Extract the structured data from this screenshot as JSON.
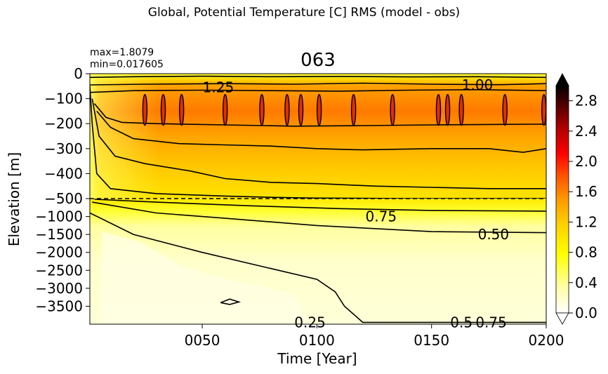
{
  "suptitle": "Global, Potential Temperature [C] RMS (model - obs)",
  "stats": {
    "max": "max=1.8079",
    "min": "min=0.017605"
  },
  "chart_data": {
    "type": "heatmap",
    "title": "063",
    "xlabel": "Time [Year]",
    "ylabel": "Elevation [m]",
    "xlim": [
      1,
      200
    ],
    "x_ticks": [
      "0050",
      "0100",
      "0150",
      "0200"
    ],
    "x_tick_values": [
      50,
      100,
      150,
      200
    ],
    "upper_panel": {
      "ylim": [
        -500,
        0
      ],
      "y_ticks": [
        "0",
        "−100",
        "−200",
        "−300",
        "−400",
        "−500"
      ],
      "y_tick_values": [
        0,
        -100,
        -200,
        -300,
        -400,
        -500
      ]
    },
    "lower_panel": {
      "ylim": [
        -4000,
        -500
      ],
      "y_ticks": [
        "−1000",
        "−1500",
        "−2000",
        "−2500",
        "−3000",
        "−3500"
      ],
      "y_tick_values": [
        -1000,
        -1500,
        -2000,
        -2500,
        -3000,
        -3500
      ]
    },
    "divider_depth": -500,
    "colorbar": {
      "ticks": [
        "0.0",
        "0.4",
        "0.8",
        "1.2",
        "1.6",
        "2.0",
        "2.4",
        "2.8"
      ],
      "tick_values": [
        0.0,
        0.4,
        0.8,
        1.2,
        1.6,
        2.0,
        2.4,
        2.8
      ],
      "range": [
        0,
        3.0
      ],
      "colormap": "hot_r",
      "colors": [
        "#ffffff",
        "#ffffa0",
        "#ffff00",
        "#ffcc00",
        "#ff9900",
        "#ff5500",
        "#ff0000",
        "#aa0000",
        "#4d0000",
        "#000000"
      ]
    },
    "contour_levels": [
      0.25,
      0.5,
      0.75,
      1.0,
      1.25
    ],
    "contour_labels": [
      {
        "text": "1.25",
        "x": 57,
        "depth": -55
      },
      {
        "text": "1.00",
        "x": 170,
        "depth": -45
      },
      {
        "text": "0.75",
        "x": 128,
        "depth": -1000
      },
      {
        "text": "0.50",
        "x": 177,
        "depth": -1500
      },
      {
        "text": "0.25",
        "x": 97,
        "depth": -3950
      },
      {
        "text": "0.5",
        "x": 163,
        "depth": -3950
      },
      {
        "text": "0.75",
        "x": 176,
        "depth": -3950
      }
    ],
    "contours": [
      {
        "level": 1.0,
        "panel": "upper",
        "points": [
          [
            1,
            -15
          ],
          [
            20,
            -12
          ],
          [
            50,
            -10
          ],
          [
            80,
            -12
          ],
          [
            110,
            -11
          ],
          [
            140,
            -13
          ],
          [
            170,
            -12
          ],
          [
            200,
            -15
          ]
        ]
      },
      {
        "level": 1.0,
        "panel": "upper",
        "points": [
          [
            1,
            -45
          ],
          [
            25,
            -42
          ],
          [
            60,
            -40
          ],
          [
            90,
            -42
          ],
          [
            120,
            -38
          ],
          [
            150,
            -42
          ],
          [
            180,
            -44
          ],
          [
            200,
            -40
          ]
        ]
      },
      {
        "level": 1.25,
        "panel": "upper",
        "points": [
          [
            1,
            -75
          ],
          [
            20,
            -68
          ],
          [
            50,
            -66
          ],
          [
            80,
            -68
          ],
          [
            110,
            -70
          ],
          [
            140,
            -66
          ],
          [
            170,
            -64
          ],
          [
            200,
            -68
          ]
        ]
      },
      {
        "level": 1.25,
        "panel": "upper",
        "points": [
          [
            3,
            -120
          ],
          [
            8,
            -175
          ],
          [
            15,
            -195
          ],
          [
            30,
            -200
          ],
          [
            60,
            -205
          ],
          [
            90,
            -210
          ],
          [
            120,
            -208
          ],
          [
            150,
            -205
          ],
          [
            180,
            -203
          ],
          [
            200,
            -202
          ]
        ]
      },
      {
        "level": 1.0,
        "panel": "upper",
        "points": [
          [
            4,
            -150
          ],
          [
            10,
            -215
          ],
          [
            20,
            -260
          ],
          [
            40,
            -280
          ],
          [
            60,
            -285
          ],
          [
            80,
            -290
          ],
          [
            100,
            -300
          ],
          [
            120,
            -305
          ],
          [
            150,
            -300
          ],
          [
            175,
            -300
          ],
          [
            190,
            -315
          ],
          [
            200,
            -300
          ]
        ]
      },
      {
        "level": 0.75,
        "panel": "upper",
        "points": [
          [
            2,
            -100
          ],
          [
            5,
            -250
          ],
          [
            12,
            -330
          ],
          [
            25,
            -360
          ],
          [
            45,
            -390
          ],
          [
            60,
            -420
          ],
          [
            80,
            -435
          ],
          [
            100,
            -440
          ],
          [
            125,
            -450
          ],
          [
            150,
            -455
          ],
          [
            175,
            -460
          ],
          [
            200,
            -460
          ]
        ]
      },
      {
        "level": 0.5,
        "panel": "upper",
        "points": [
          [
            1,
            -50
          ],
          [
            2,
            -200
          ],
          [
            4,
            -400
          ],
          [
            10,
            -460
          ],
          [
            30,
            -480
          ],
          [
            60,
            -490
          ],
          [
            80,
            -495
          ],
          [
            100,
            -498
          ],
          [
            140,
            -500
          ],
          [
            200,
            -500
          ]
        ]
      },
      {
        "level": 0.75,
        "panel": "lower",
        "points": [
          [
            3,
            -520
          ],
          [
            30,
            -600
          ],
          [
            70,
            -700
          ],
          [
            110,
            -780
          ],
          [
            150,
            -830
          ],
          [
            200,
            -850
          ]
        ]
      },
      {
        "level": 0.5,
        "panel": "lower",
        "points": [
          [
            2,
            -600
          ],
          [
            30,
            -900
          ],
          [
            60,
            -1050
          ],
          [
            100,
            -1250
          ],
          [
            150,
            -1420
          ],
          [
            200,
            -1450
          ]
        ]
      },
      {
        "level": 0.25,
        "panel": "lower",
        "points": [
          [
            1,
            -900
          ],
          [
            20,
            -1500
          ],
          [
            50,
            -2000
          ],
          [
            80,
            -2450
          ],
          [
            100,
            -2750
          ],
          [
            108,
            -3100
          ],
          [
            112,
            -3500
          ],
          [
            120,
            -3950
          ],
          [
            200,
            -3950
          ]
        ]
      },
      {
        "level": 0.25,
        "panel": "lower",
        "points": [
          [
            58,
            -3400
          ],
          [
            62,
            -3300
          ],
          [
            66,
            -3380
          ],
          [
            62,
            -3450
          ],
          [
            58,
            -3400
          ]
        ]
      }
    ]
  }
}
